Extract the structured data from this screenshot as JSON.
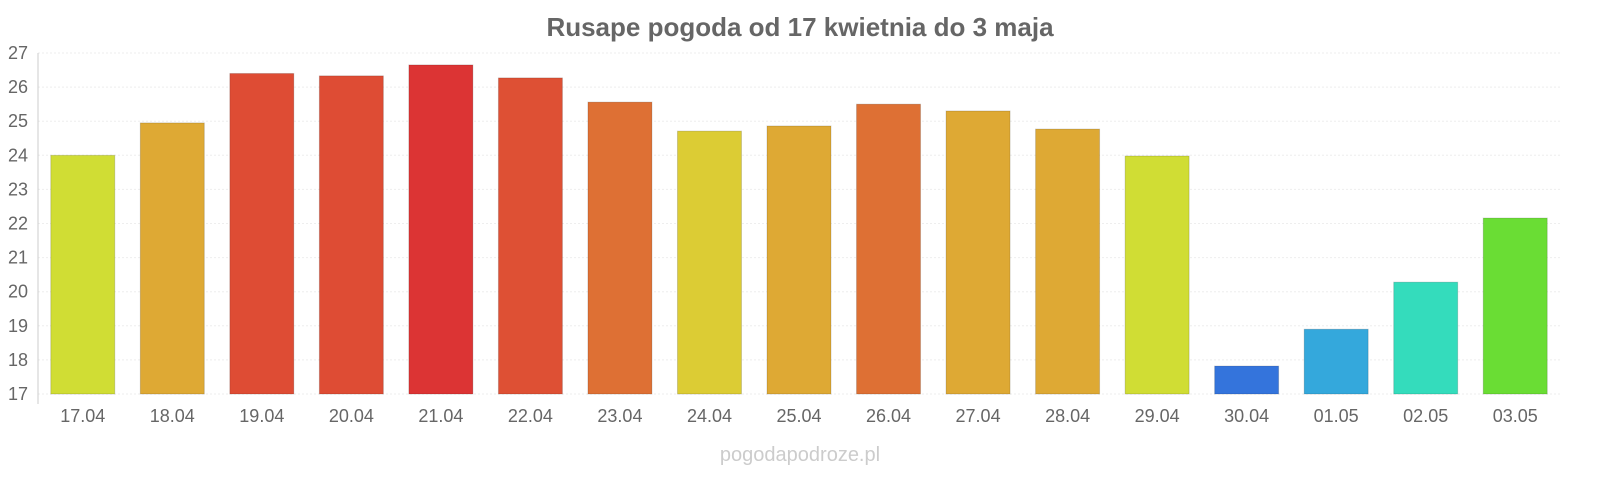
{
  "chart_data": {
    "type": "bar",
    "title": "Rusape pogoda od 17 kwietnia do 3 maja",
    "xlabel": "",
    "ylabel": "",
    "ylim": [
      17,
      27
    ],
    "yticks": [
      17,
      18,
      19,
      20,
      21,
      22,
      23,
      24,
      25,
      26,
      27
    ],
    "grid": true,
    "categories": [
      "17.04",
      "18.04",
      "19.04",
      "20.04",
      "21.04",
      "22.04",
      "23.04",
      "24.04",
      "25.04",
      "26.04",
      "27.04",
      "28.04",
      "29.04",
      "30.04",
      "01.05",
      "02.05",
      "03.05"
    ],
    "values": [
      24.0,
      24.95,
      26.4,
      26.33,
      26.65,
      26.27,
      25.56,
      24.71,
      24.86,
      25.5,
      25.3,
      24.77,
      23.98,
      17.82,
      18.9,
      20.28,
      22.16
    ],
    "colors": [
      "#d0dd34",
      "#dea934",
      "#de4c34",
      "#de4c34",
      "#dc3434",
      "#de5034",
      "#de7034",
      "#dccc34",
      "#dea934",
      "#de7034",
      "#dea934",
      "#dea934",
      "#d0dd34",
      "#3474dc",
      "#34a8dc",
      "#34dcbc",
      "#6add34"
    ],
    "watermark": "pogodapodroze.pl"
  }
}
